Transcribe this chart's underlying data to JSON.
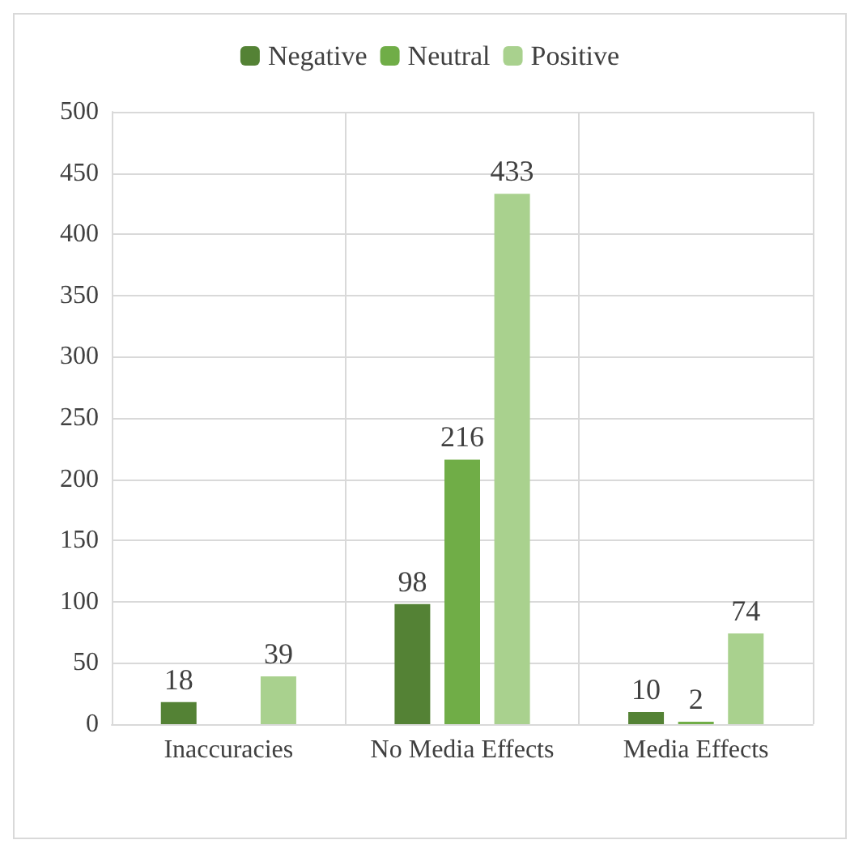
{
  "chart_data": {
    "type": "bar",
    "categories": [
      "Inaccuracies",
      "No Media Effects",
      "Media Effects"
    ],
    "series": [
      {
        "name": "Negative",
        "color": "#548235",
        "values": [
          18,
          98,
          10
        ],
        "value_labels": [
          "18",
          "98",
          "10"
        ]
      },
      {
        "name": "Neutral",
        "color": "#70ad47",
        "values": [
          0,
          216,
          2
        ],
        "value_labels": [
          null,
          "216",
          "2"
        ]
      },
      {
        "name": "Positive",
        "color": "#a9d18e",
        "values": [
          39,
          433,
          74
        ],
        "value_labels": [
          "39",
          "433",
          "74"
        ]
      }
    ],
    "ylim": [
      0,
      500
    ],
    "yticks": [
      0,
      50,
      100,
      150,
      200,
      250,
      300,
      350,
      400,
      450,
      500
    ],
    "grid": true,
    "legend": "top"
  }
}
